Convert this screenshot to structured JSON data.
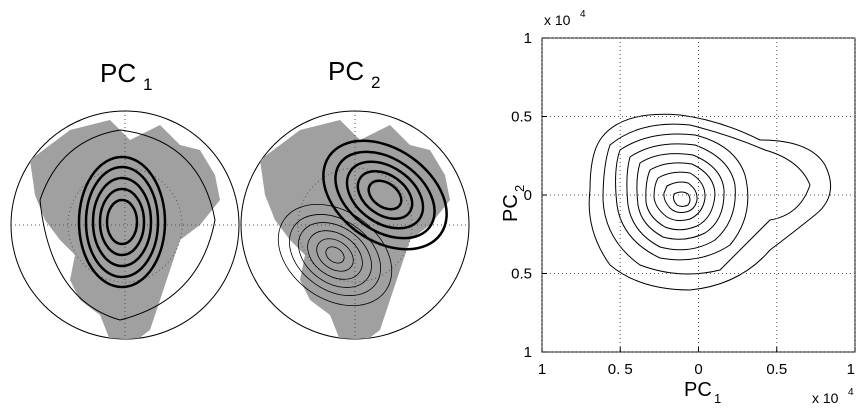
{
  "chart_data": [
    {
      "type": "map",
      "title": "PC",
      "title_sub": "1"
    },
    {
      "type": "map",
      "title": "PC",
      "title_sub": "2"
    },
    {
      "type": "contour",
      "xlabel": "PC",
      "xlabel_sub": "1",
      "ylabel": "PC",
      "ylabel_sub": "2",
      "xlim": [
        -1,
        1
      ],
      "ylim": [
        -1,
        1
      ],
      "xticks": [
        {
          "value": -1,
          "label": "1"
        },
        {
          "value": -0.5,
          "label": "0. 5"
        },
        0,
        0.5,
        1
      ],
      "yticks": [
        {
          "value": -1,
          "label": "1"
        },
        {
          "value": -0.5,
          "label": "0.5"
        },
        0,
        0.5,
        1
      ],
      "x_multiplier": "x 10",
      "x_multiplier_exp": "4",
      "y_multiplier": "x 10",
      "y_multiplier_exp": "4",
      "grid": true
    }
  ]
}
